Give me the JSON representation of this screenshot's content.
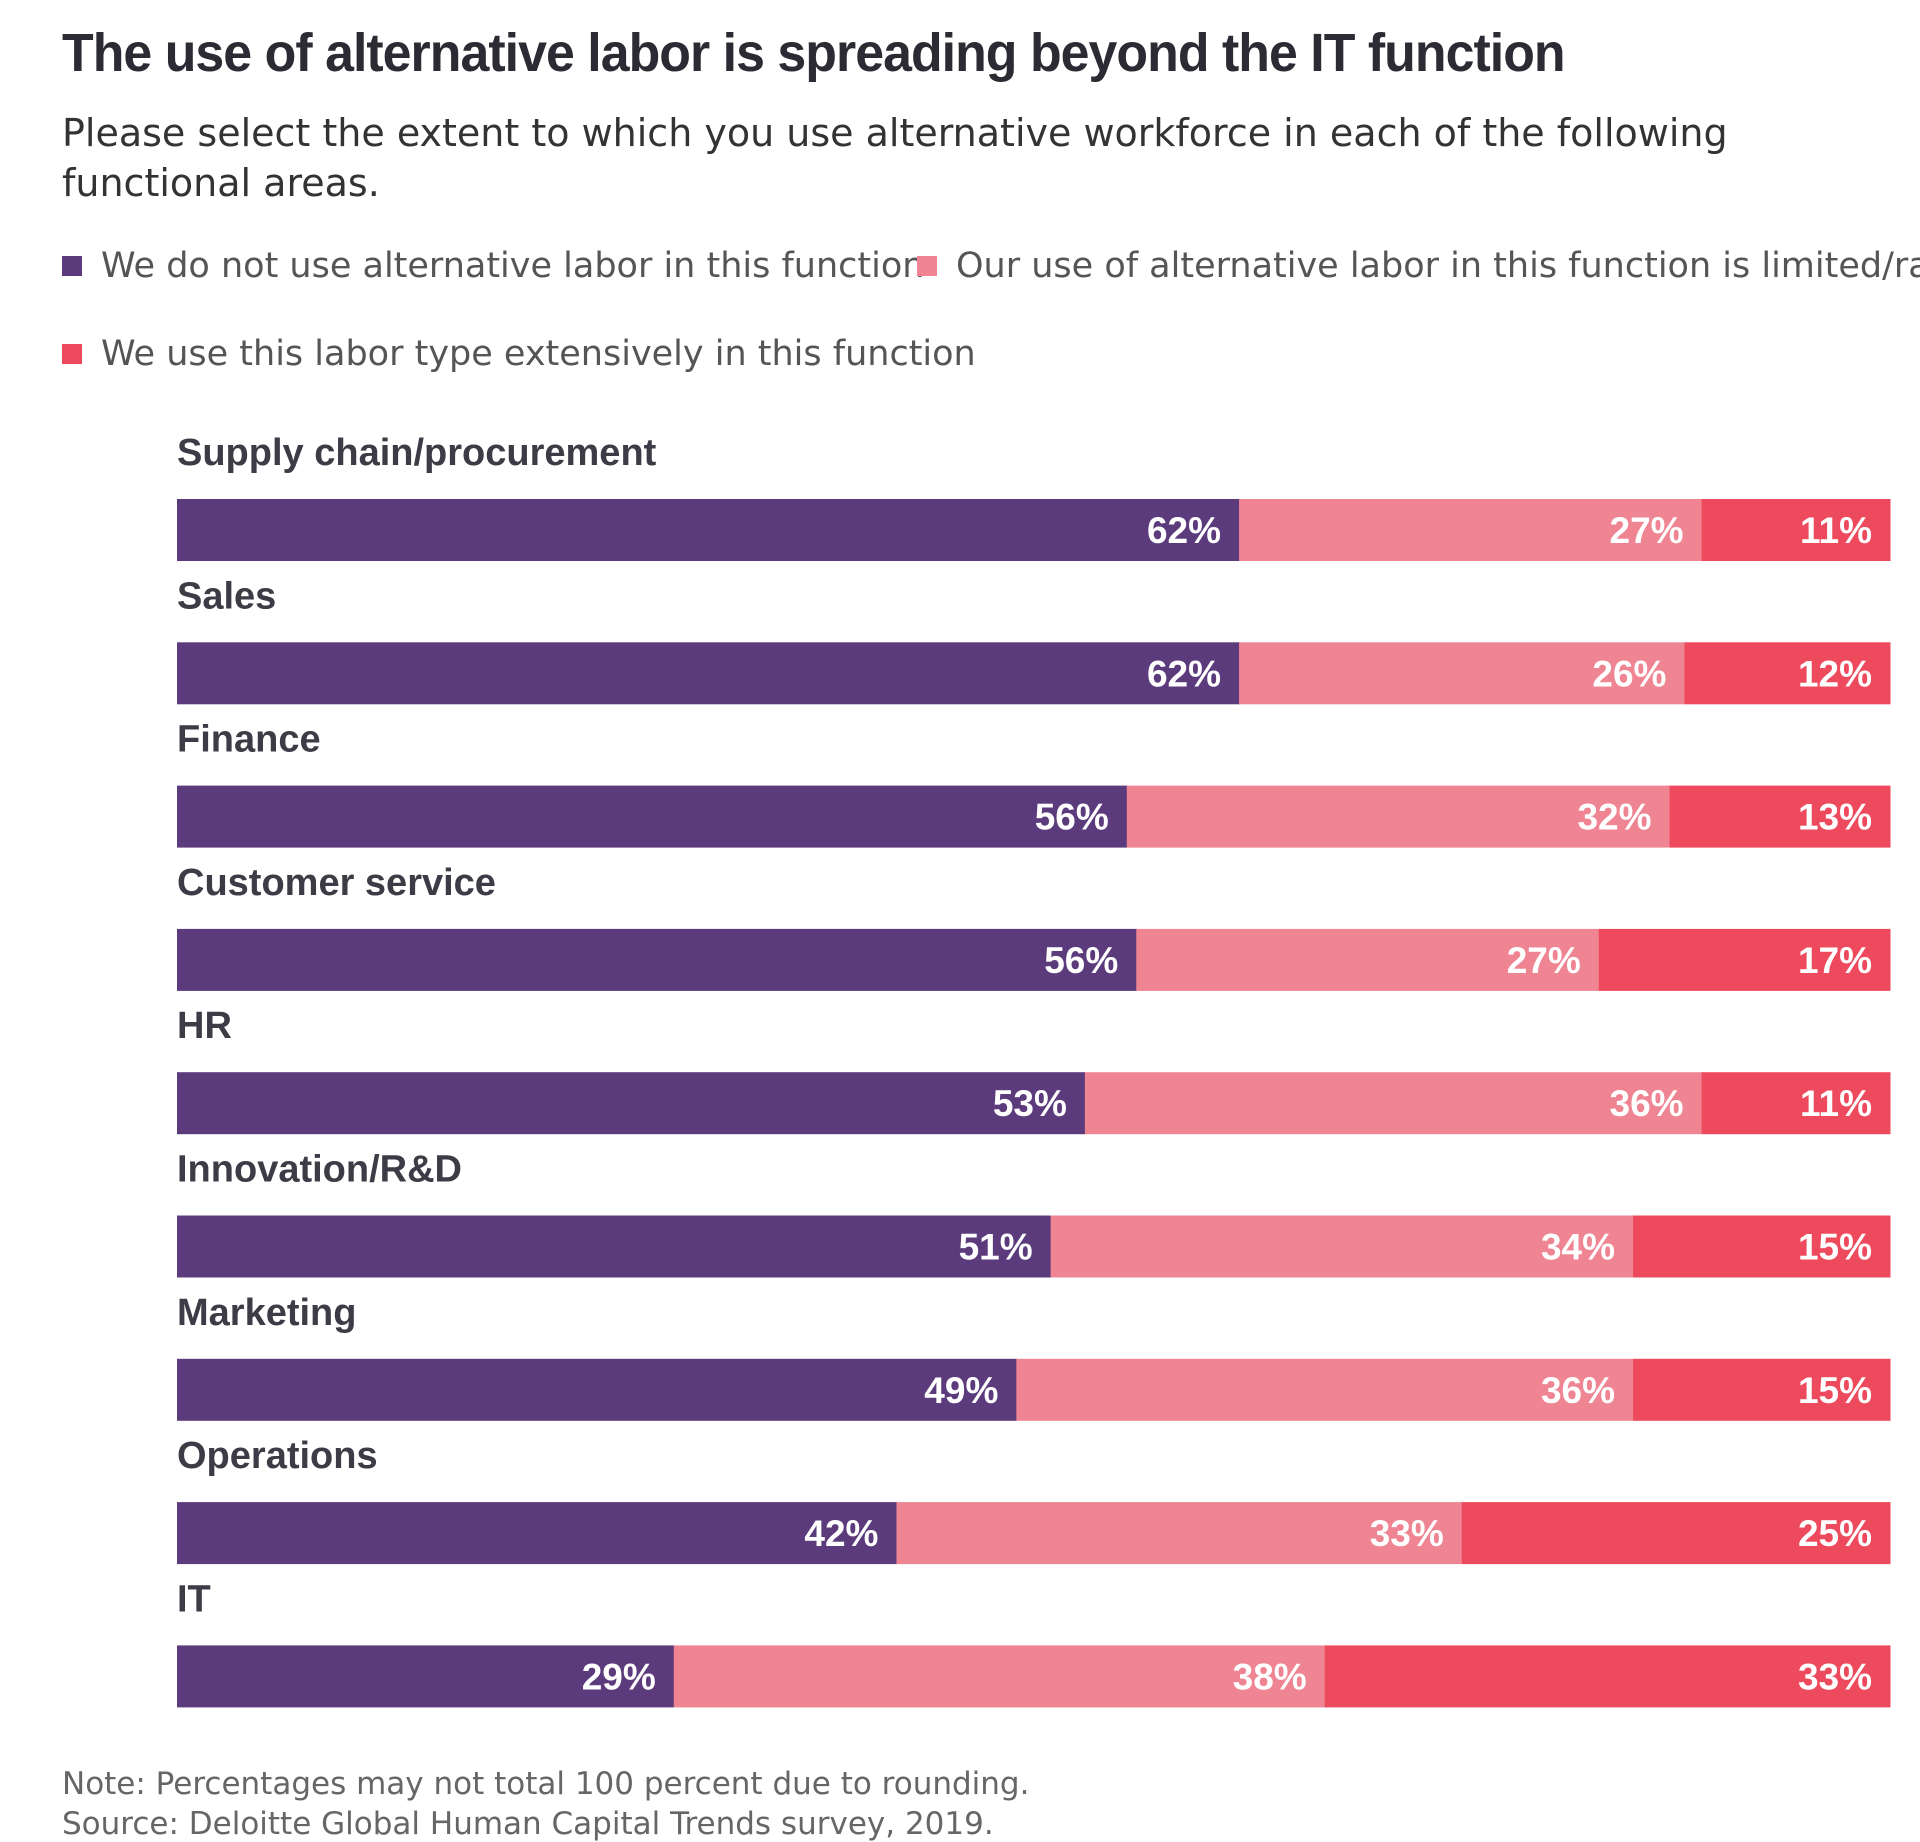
{
  "header": {
    "title": "The use of alternative labor is spreading beyond the IT function",
    "subtitle": "Please select the extent to which you use alternative workforce in each of the following functional areas."
  },
  "legend": [
    {
      "label": "We do not use alternative labor in this function",
      "color": "#5c3b7c"
    },
    {
      "label": "Our use of alternative labor in this function is limited/rare",
      "color": "#ef8593"
    },
    {
      "label": "We use this labor type extensively in this function",
      "color": "#ee4a5d"
    }
  ],
  "chart_data": {
    "type": "bar",
    "orientation": "horizontal",
    "stacked": true,
    "categories": [
      "Supply chain/procurement",
      "Sales",
      "Finance",
      "Customer service",
      "HR",
      "Innovation/R&D",
      "Marketing",
      "Operations",
      "IT"
    ],
    "series": [
      {
        "name": "We do not use alternative labor in this function",
        "color": "#5c3b7c",
        "values": [
          62,
          62,
          56,
          56,
          53,
          51,
          49,
          42,
          29
        ],
        "labels": [
          "62%",
          "62%",
          "56%",
          "56%",
          "53%",
          "51%",
          "49%",
          "42%",
          "29%"
        ]
      },
      {
        "name": "Our use of alternative labor in this function is limited/rare",
        "color": "#ef8593",
        "values": [
          27,
          26,
          32,
          27,
          36,
          34,
          36,
          33,
          38
        ],
        "labels": [
          "27%",
          "26%",
          "32%",
          "27%",
          "36%",
          "34%",
          "36%",
          "33%",
          "38%"
        ]
      },
      {
        "name": "We use this labor type extensively in this function",
        "color": "#ee4a5d",
        "values": [
          11,
          12,
          13,
          17,
          11,
          15,
          15,
          25,
          33
        ],
        "labels": [
          "11%",
          "12%",
          "13%",
          "17%",
          "11%",
          "15%",
          "15%",
          "25%",
          "33%"
        ]
      }
    ],
    "xlim": [
      0,
      100
    ],
    "grid": false,
    "legend_position": "top"
  },
  "footer": {
    "note": "Note: Percentages may not total 100 percent due to rounding.",
    "source": "Source: Deloitte Global Human Capital Trends survey, 2019."
  }
}
